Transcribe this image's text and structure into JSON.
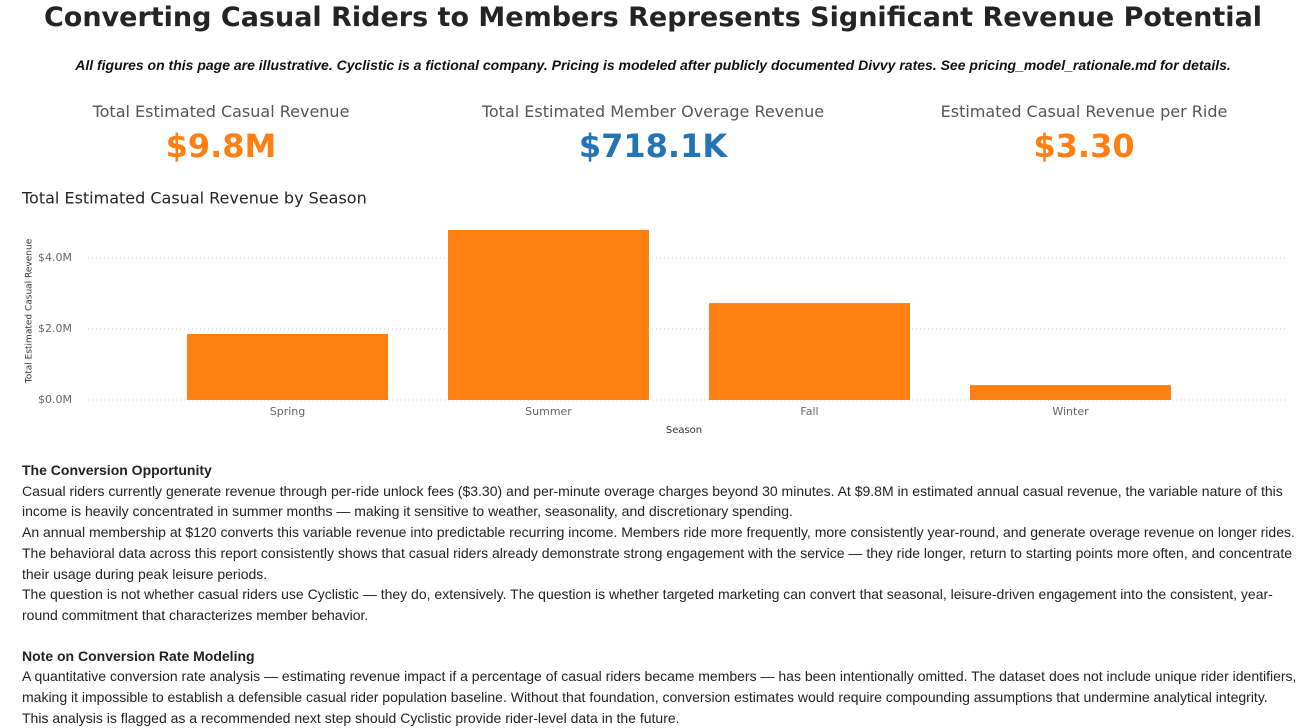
{
  "header": {
    "title": "Converting Casual Riders to Members Represents Significant Revenue Potential",
    "subtitle": "All figures on this page are illustrative.  Cyclistic is a fictional company.  Pricing is modeled after publicly documented Divvy rates.  See pricing_model_rationale.md for details."
  },
  "kpis": [
    {
      "label": "Total Estimated Casual Revenue",
      "value": "$9.8M"
    },
    {
      "label": "Total Estimated Member Overage Revenue",
      "value": "$718.1K"
    },
    {
      "label": "Estimated Casual Revenue per Ride",
      "value": "$3.30"
    }
  ],
  "chart_data": {
    "type": "bar",
    "title": "Total Estimated Casual Revenue by Season",
    "x_label": "Season",
    "y_label": "Total Estimated Casual Revenue",
    "categories": [
      "Spring",
      "Summer",
      "Fall",
      "Winter"
    ],
    "values": [
      1860000,
      4790000,
      2730000,
      420000
    ],
    "color": "#FF7F11",
    "ylim": [
      0,
      4900000
    ],
    "yticks": [
      {
        "value": 0,
        "label": "$0.0M"
      },
      {
        "value": 2000000,
        "label": "$2.0M"
      },
      {
        "value": 4000000,
        "label": "$4.0M"
      }
    ],
    "grid": true
  },
  "sections": [
    {
      "heading": "The Conversion Opportunity",
      "paragraphs": [
        "Casual riders currently generate revenue through per-ride unlock fees ($3.30) and per-minute overage charges beyond 30 minutes. At $9.8M in estimated annual casual revenue, the variable nature of this income is heavily concentrated in summer months — making it sensitive to weather, seasonality, and discretionary spending.",
        "An annual membership at $120 converts this variable revenue into predictable recurring income. Members ride more frequently, more consistently year-round, and generate overage revenue on longer rides. The behavioral data across this report consistently shows that casual riders already demonstrate strong engagement with the service — they ride longer, return to starting points more often, and concentrate their usage during peak leisure periods.",
        "The question is not whether casual riders use Cyclistic — they do, extensively. The question is whether targeted marketing can convert that seasonal, leisure-driven engagement into the consistent, year-round commitment that characterizes member behavior."
      ]
    },
    {
      "heading": "Note on Conversion Rate Modeling",
      "paragraphs": [
        "A quantitative conversion rate analysis — estimating revenue impact if a percentage of casual riders became members — has been intentionally omitted. The dataset does not include unique rider identifiers, making it impossible to establish a defensible casual rider population baseline. Without that foundation, conversion estimates would require compounding assumptions that undermine analytical integrity. This analysis is flagged as a recommended next step should Cyclistic provide rider-level data in the future."
      ]
    }
  ]
}
